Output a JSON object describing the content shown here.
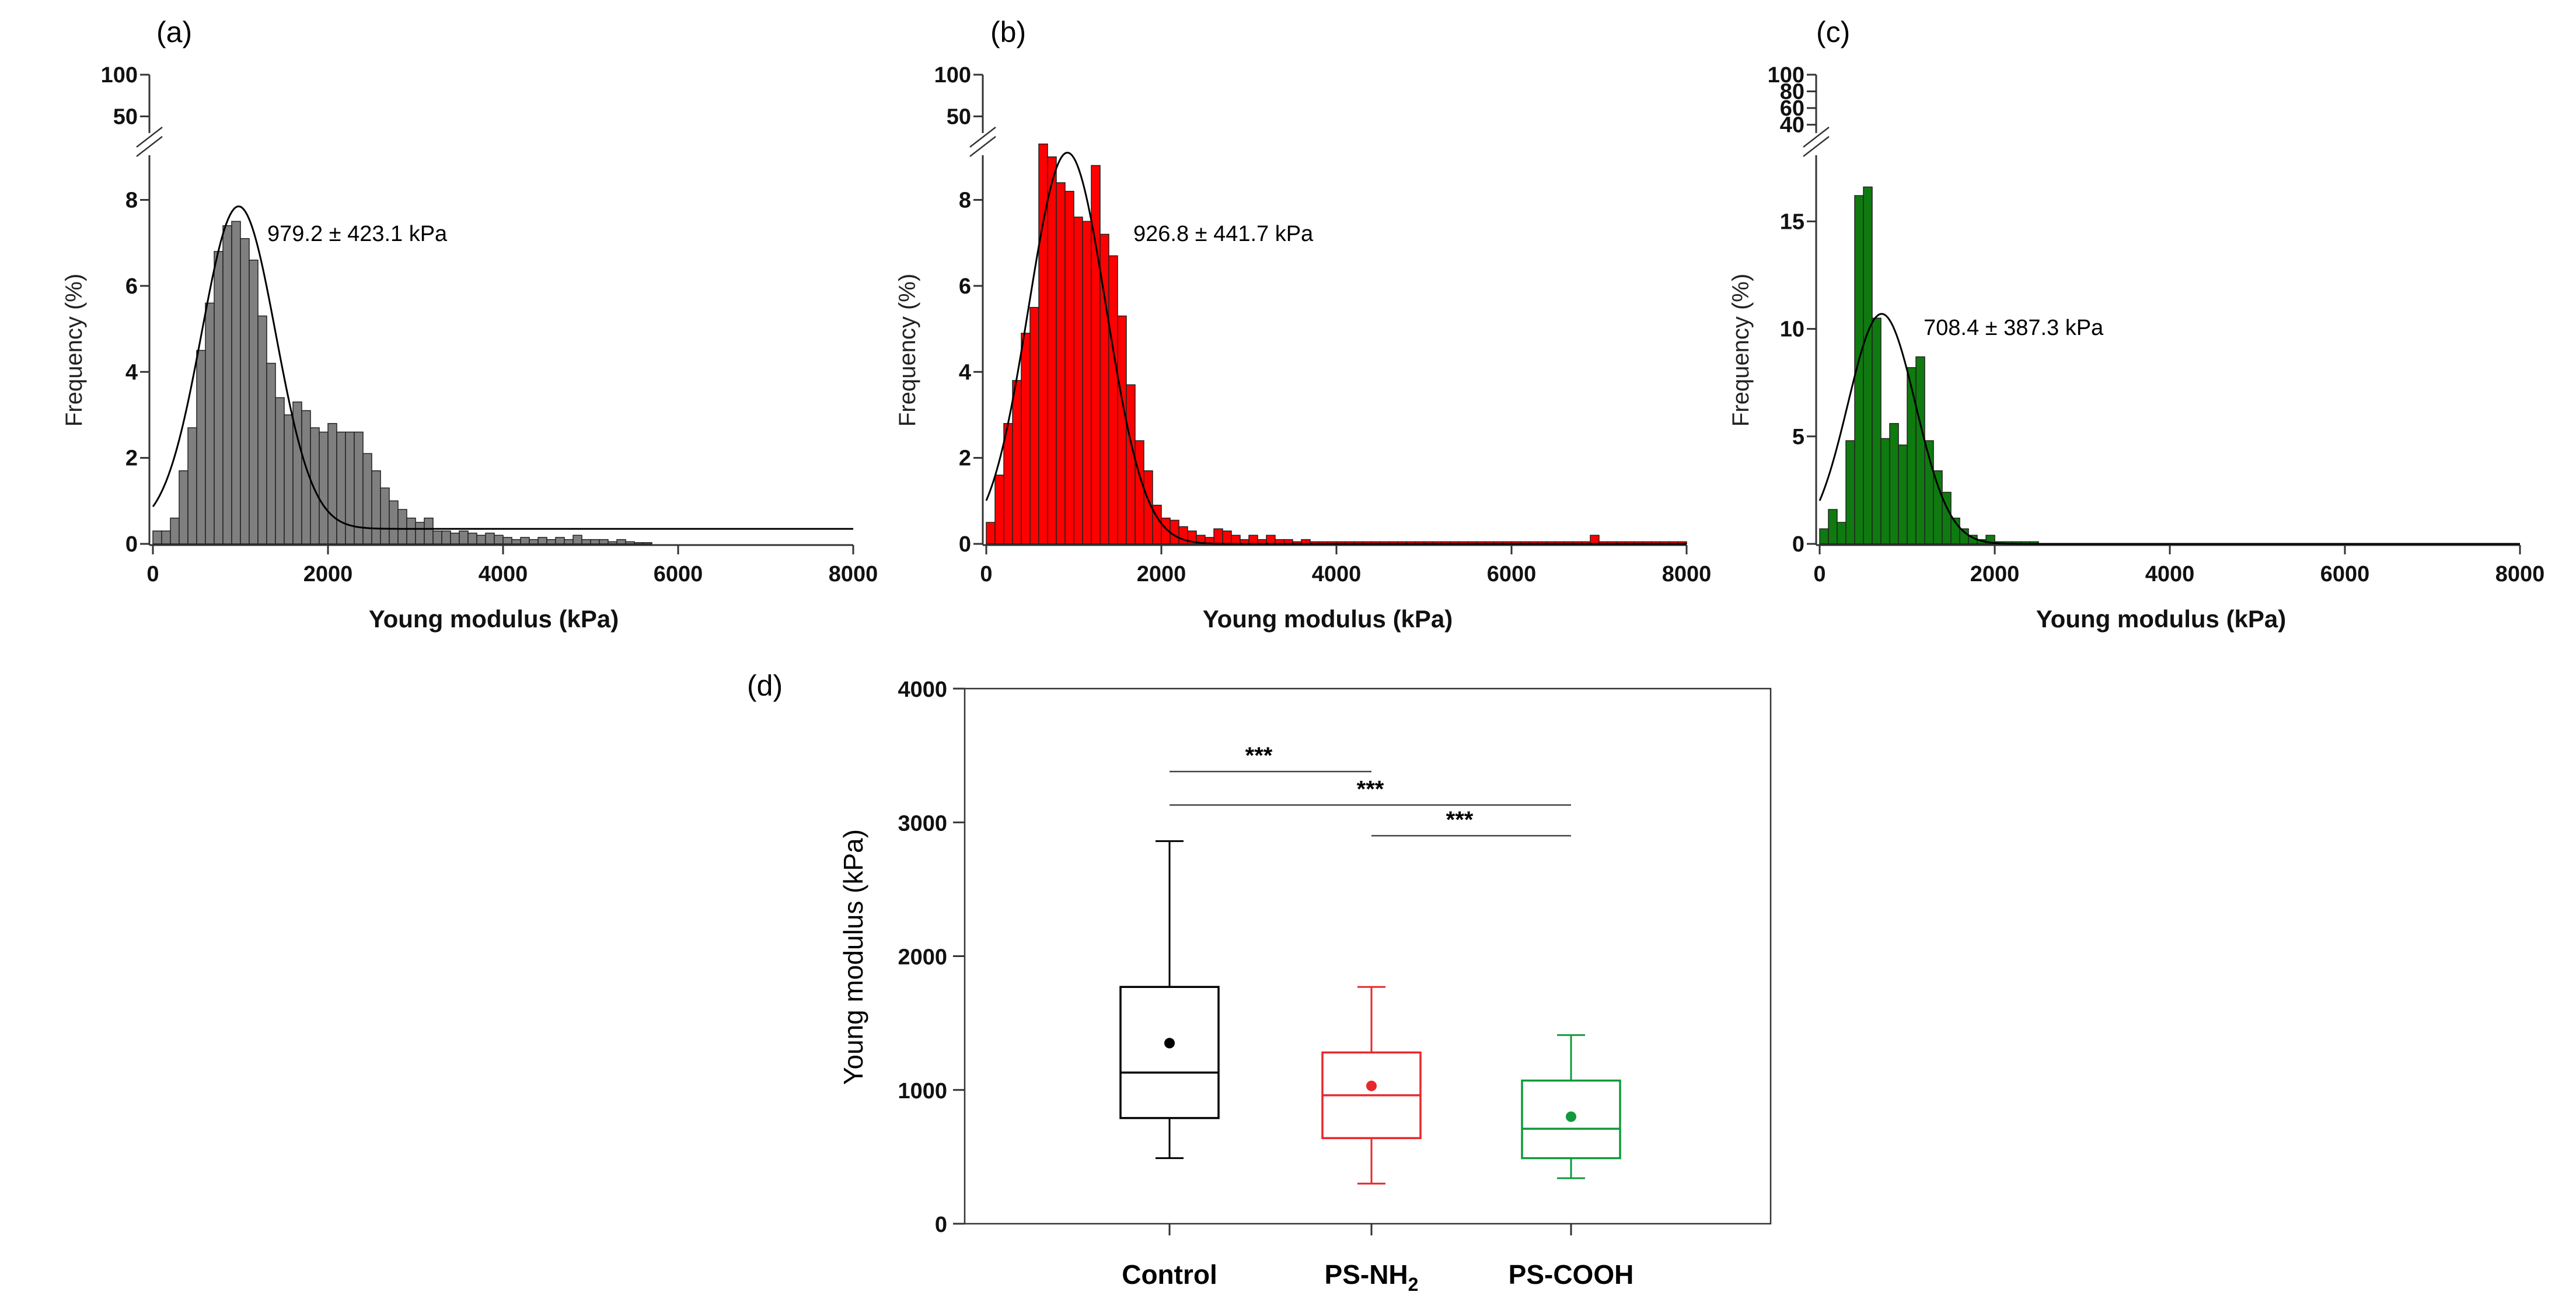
{
  "chart_data": [
    {
      "type": "histogram",
      "panel": "(a)",
      "color": "#7f7f7f",
      "xlabel": "Young modulus (kPa)",
      "ylabel": "Frequency (%)",
      "xlim": [
        0,
        8000
      ],
      "xticks": [
        0,
        2000,
        4000,
        6000,
        8000
      ],
      "xtick_labels": [
        "0",
        "2000",
        "4000",
        "6000",
        "8000"
      ],
      "ylim_lower": [
        0,
        9.5
      ],
      "yticks_lower": [
        0,
        2,
        4,
        6,
        8
      ],
      "ylim_upper": [
        30,
        100
      ],
      "yticks_upper": [
        50,
        100
      ],
      "bin_width": 100,
      "bin_start": 0,
      "values": [
        0.3,
        0.3,
        0.6,
        1.7,
        2.7,
        4.5,
        5.6,
        6.8,
        7.4,
        7.5,
        7.1,
        6.6,
        5.3,
        4.2,
        3.4,
        3.0,
        3.3,
        3.1,
        2.7,
        2.6,
        2.8,
        2.6,
        2.6,
        2.6,
        2.1,
        1.7,
        1.3,
        1.0,
        0.8,
        0.6,
        0.5,
        0.6,
        0.3,
        0.3,
        0.25,
        0.3,
        0.25,
        0.2,
        0.25,
        0.2,
        0.15,
        0.1,
        0.15,
        0.1,
        0.15,
        0.1,
        0.15,
        0.1,
        0.2,
        0.1,
        0.1,
        0.1,
        0.05,
        0.1,
        0.05,
        0.03,
        0.03,
        0,
        0,
        0
      ],
      "fit": {
        "mean": 979.2,
        "sd": 423.1,
        "peak": 7.5,
        "baseline": 0.35
      },
      "annotation": "979.2 ± 423.1 kPa"
    },
    {
      "type": "histogram",
      "panel": "(b)",
      "color": "#ff0000",
      "xlabel": "Young modulus (kPa)",
      "ylabel": "Frequency (%)",
      "xlim": [
        0,
        8000
      ],
      "xticks": [
        0,
        2000,
        4000,
        6000,
        8000
      ],
      "xtick_labels": [
        "0",
        "2000",
        "4000",
        "6000",
        "8000"
      ],
      "ylim_lower": [
        0,
        9.5
      ],
      "yticks_lower": [
        0,
        2,
        4,
        6,
        8
      ],
      "ylim_upper": [
        30,
        100
      ],
      "yticks_upper": [
        50,
        100
      ],
      "bin_width": 100,
      "bin_start": 0,
      "values": [
        0.5,
        1.6,
        2.8,
        3.8,
        4.9,
        5.5,
        9.3,
        9.0,
        8.4,
        8.2,
        7.6,
        7.5,
        8.8,
        7.2,
        6.7,
        5.3,
        3.7,
        2.4,
        1.7,
        0.9,
        0.6,
        0.55,
        0.4,
        0.3,
        0.2,
        0.15,
        0.35,
        0.3,
        0.2,
        0.1,
        0.2,
        0.1,
        0.2,
        0.1,
        0.1,
        0.05,
        0.1,
        0.05,
        0.05,
        0.05,
        0.05,
        0.05,
        0.05,
        0.05,
        0.05,
        0.05,
        0.05,
        0.05,
        0.05,
        0.05,
        0.05,
        0.05,
        0.05,
        0.05,
        0.05,
        0.05,
        0.05,
        0.05,
        0.05,
        0.05,
        0.05,
        0.05,
        0.05,
        0.05,
        0.05,
        0.05,
        0.05,
        0.05,
        0.05,
        0.2,
        0.05,
        0.05,
        0.05,
        0.05,
        0.05,
        0.05,
        0.05,
        0.05,
        0.05,
        0.05
      ],
      "fit": {
        "mean": 926.8,
        "sd": 441.7,
        "peak": 9.1,
        "baseline": 0
      },
      "annotation": "926.8 ± 441.7 kPa"
    },
    {
      "type": "histogram",
      "panel": "(c)",
      "color": "#0f7a0f",
      "xlabel": "Young modulus (kPa)",
      "ylabel": "Frequency (%)",
      "xlim": [
        0,
        8000
      ],
      "xticks": [
        0,
        2000,
        4000,
        6000,
        8000
      ],
      "xtick_labels": [
        "0",
        "2000",
        "4000",
        "6000",
        "8000"
      ],
      "ylim_lower": [
        0,
        19
      ],
      "yticks_lower": [
        0,
        5,
        10,
        15
      ],
      "ylim_upper": [
        30,
        100
      ],
      "yticks_upper": [
        40,
        60,
        80,
        100
      ],
      "bin_width": 100,
      "bin_start": 0,
      "values": [
        0.7,
        1.6,
        1.0,
        4.8,
        16.2,
        16.6,
        10.5,
        4.9,
        5.6,
        4.6,
        8.2,
        8.7,
        4.8,
        3.4,
        2.4,
        1.2,
        0.7,
        0.4,
        0.2,
        0.4,
        0.1,
        0.1,
        0.1,
        0.1,
        0.1
      ],
      "fit": {
        "mean": 708.4,
        "sd": 387.3,
        "peak": 10.7,
        "baseline": 0
      },
      "annotation": "708.4 ± 387.3 kPa"
    },
    {
      "type": "box",
      "panel": "(d)",
      "ylabel": "Young modulus (kPa)",
      "ylim": [
        0,
        4000
      ],
      "yticks": [
        0,
        1000,
        2000,
        3000,
        4000
      ],
      "ytick_labels": [
        "0",
        "1000",
        "2000",
        "3000",
        "4000"
      ],
      "categories": [
        {
          "label": "Control",
          "color": "#000000",
          "whisker_low": 490,
          "q1": 790,
          "median": 1130,
          "q3": 1770,
          "whisker_high": 2860,
          "mean": 1350
        },
        {
          "label": "PS-NH",
          "subscript": "2",
          "color": "#e8282b",
          "whisker_low": 300,
          "q1": 640,
          "median": 960,
          "q3": 1280,
          "whisker_high": 1770,
          "mean": 1030
        },
        {
          "label": "PS-COOH",
          "color": "#109a3a",
          "whisker_low": 340,
          "q1": 490,
          "median": 710,
          "q3": 1070,
          "whisker_high": 1410,
          "mean": 800
        }
      ],
      "significance": [
        {
          "from": 0,
          "to": 1,
          "y": 3380,
          "label": "***"
        },
        {
          "from": 0,
          "to": 2,
          "y": 3130,
          "label": "***"
        },
        {
          "from": 1,
          "to": 2,
          "y": 2900,
          "label": "***"
        }
      ]
    }
  ]
}
